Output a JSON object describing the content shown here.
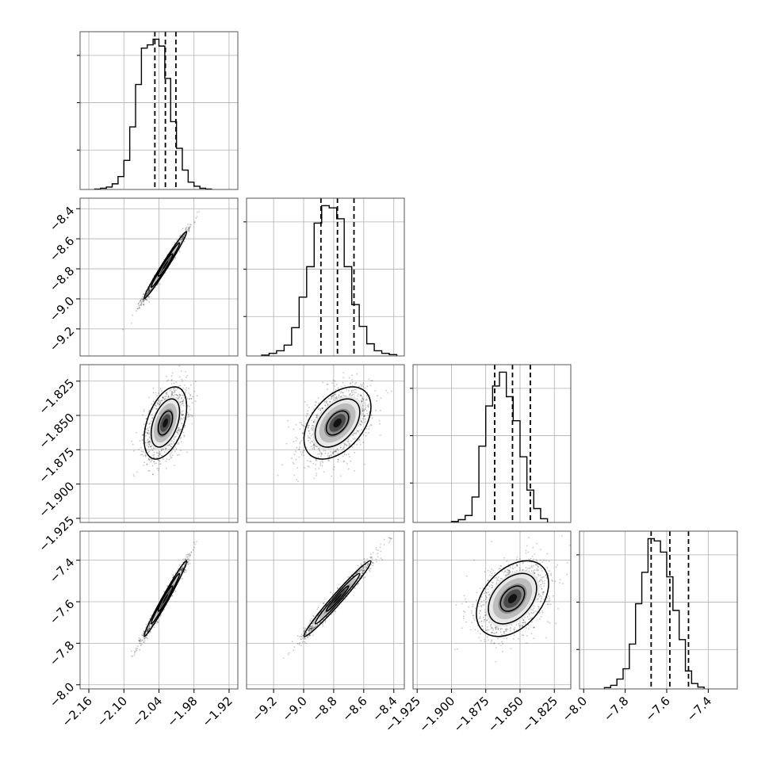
{
  "chart_data": {
    "type": "corner",
    "parameters": 4,
    "axes_labels": [
      "",
      "",
      "",
      ""
    ],
    "ranges": [
      [
        -2.175,
        -1.905
      ],
      [
        -9.38,
        -8.33
      ],
      [
        -1.928,
        -1.813
      ],
      [
        -8.02,
        -7.26
      ]
    ],
    "ticks": [
      [
        "-2.16",
        "-2.10",
        "-2.04",
        "-1.98",
        "-1.92"
      ],
      [
        "-9.2",
        "-9.0",
        "-8.8",
        "-8.6",
        "-8.4"
      ],
      [
        "-1.925",
        "-1.900",
        "-1.875",
        "-1.850",
        "-1.825"
      ],
      [
        "-8.0",
        "-7.8",
        "-7.6",
        "-7.4"
      ]
    ],
    "quantiles": [
      [
        -2.047,
        -2.029,
        -2.011
      ],
      [
        -8.885,
        -8.775,
        -8.665
      ],
      [
        -1.8685,
        -1.8555,
        -1.8425
      ],
      [
        -7.675,
        -7.585,
        -7.495
      ]
    ],
    "histograms": [
      {
        "bins_lo": -2.15,
        "bin_width": 0.01,
        "counts": [
          1,
          3,
          6,
          14,
          32,
          72,
          155,
          260,
          350,
          358,
          372,
          355,
          275,
          168,
          102,
          48,
          18,
          8,
          3,
          1
        ]
      },
      {
        "bins_lo": -9.28,
        "bin_width": 0.05,
        "counts": [
          2,
          6,
          12,
          25,
          65,
          135,
          205,
          305,
          345,
          340,
          315,
          205,
          118,
          68,
          28,
          12,
          6,
          3
        ]
      },
      {
        "bins_lo": -1.9,
        "bin_width": 0.005,
        "counts": [
          2,
          6,
          15,
          55,
          165,
          252,
          295,
          325,
          272,
          220,
          142,
          70,
          30,
          8
        ]
      },
      {
        "bins_lo": -7.9,
        "bin_width": 0.03,
        "counts": [
          3,
          8,
          22,
          45,
          100,
          190,
          260,
          335,
          330,
          305,
          250,
          175,
          110,
          40,
          12,
          4
        ]
      }
    ],
    "scatter_panels": [
      {
        "x": 0,
        "y": 1,
        "correlation": 0.985
      },
      {
        "x": 0,
        "y": 2,
        "correlation": 0.45
      },
      {
        "x": 1,
        "y": 2,
        "correlation": 0.45
      },
      {
        "x": 0,
        "y": 3,
        "correlation": 0.985
      },
      {
        "x": 1,
        "y": 3,
        "correlation": 0.98
      },
      {
        "x": 2,
        "y": 3,
        "correlation": 0.4
      }
    ],
    "grid": true,
    "contour_levels": [
      0.5,
      1.0,
      1.5
    ],
    "colors": {
      "line": "#000000",
      "points": "#000000",
      "grid": "#b0b0b0",
      "frame": "#555555"
    }
  }
}
